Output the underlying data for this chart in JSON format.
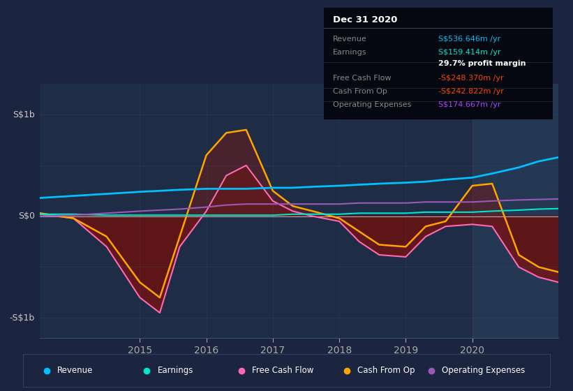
{
  "bg_color": "#1c2540",
  "plot_bg_color": "#1e2d45",
  "highlight_bg": "#263550",
  "x_ticks": [
    2015,
    2016,
    2017,
    2018,
    2019,
    2020
  ],
  "x_min": 2013.5,
  "x_max": 2021.3,
  "y_min": -1.2,
  "y_max": 1.3,
  "info_box": {
    "title": "Dec 31 2020",
    "rows": [
      {
        "label": "Revenue",
        "value": "S$536.646m /yr",
        "value_color": "#00bfff"
      },
      {
        "label": "Earnings",
        "value": "S$159.414m /yr",
        "value_color": "#00e5cc"
      },
      {
        "label": "",
        "value": "29.7% profit margin",
        "value_color": "#ffffff"
      },
      {
        "label": "Free Cash Flow",
        "value": "-S$248.370m /yr",
        "value_color": "#ff4500"
      },
      {
        "label": "Cash From Op",
        "value": "-S$242.822m /yr",
        "value_color": "#ff4500"
      },
      {
        "label": "Operating Expenses",
        "value": "S$174.667m /yr",
        "value_color": "#aa44ff"
      }
    ]
  },
  "legend": [
    {
      "label": "Revenue",
      "color": "#00bfff"
    },
    {
      "label": "Earnings",
      "color": "#00e5cc"
    },
    {
      "label": "Free Cash Flow",
      "color": "#ff69b4"
    },
    {
      "label": "Cash From Op",
      "color": "#ffa500"
    },
    {
      "label": "Operating Expenses",
      "color": "#9b59b6"
    }
  ],
  "series": {
    "x": [
      2013.5,
      2014.0,
      2014.5,
      2015.0,
      2015.3,
      2015.6,
      2016.0,
      2016.3,
      2016.6,
      2017.0,
      2017.3,
      2017.6,
      2018.0,
      2018.3,
      2018.6,
      2019.0,
      2019.3,
      2019.6,
      2020.0,
      2020.3,
      2020.7,
      2021.0,
      2021.3
    ],
    "revenue": [
      0.18,
      0.2,
      0.22,
      0.24,
      0.25,
      0.26,
      0.27,
      0.27,
      0.27,
      0.28,
      0.28,
      0.29,
      0.3,
      0.31,
      0.32,
      0.33,
      0.34,
      0.36,
      0.38,
      0.42,
      0.48,
      0.54,
      0.58
    ],
    "earnings": [
      0.02,
      0.02,
      0.01,
      0.01,
      0.01,
      0.01,
      0.01,
      0.01,
      0.01,
      0.01,
      0.02,
      0.02,
      0.02,
      0.03,
      0.03,
      0.03,
      0.04,
      0.04,
      0.04,
      0.05,
      0.06,
      0.07,
      0.075
    ],
    "free_cash": [
      0.02,
      -0.02,
      -0.3,
      -0.8,
      -0.95,
      -0.3,
      0.05,
      0.4,
      0.5,
      0.15,
      0.05,
      0.0,
      -0.05,
      -0.25,
      -0.38,
      -0.4,
      -0.2,
      -0.1,
      -0.08,
      -0.1,
      -0.5,
      -0.6,
      -0.65
    ],
    "cash_from_op": [
      0.03,
      -0.02,
      -0.2,
      -0.65,
      -0.8,
      -0.2,
      0.6,
      0.82,
      0.85,
      0.25,
      0.1,
      0.05,
      -0.02,
      -0.15,
      -0.28,
      -0.3,
      -0.1,
      -0.05,
      0.3,
      0.32,
      -0.38,
      -0.5,
      -0.55
    ],
    "op_expenses": [
      0.0,
      0.01,
      0.03,
      0.05,
      0.06,
      0.07,
      0.09,
      0.11,
      0.12,
      0.12,
      0.12,
      0.12,
      0.12,
      0.13,
      0.13,
      0.13,
      0.14,
      0.14,
      0.14,
      0.15,
      0.16,
      0.165,
      0.17
    ]
  },
  "colors": {
    "revenue": "#00bfff",
    "earnings": "#00e5cc",
    "free_cash": "#ff69b4",
    "cash_from_op": "#ffa500",
    "op_expenses": "#9b59b6"
  }
}
